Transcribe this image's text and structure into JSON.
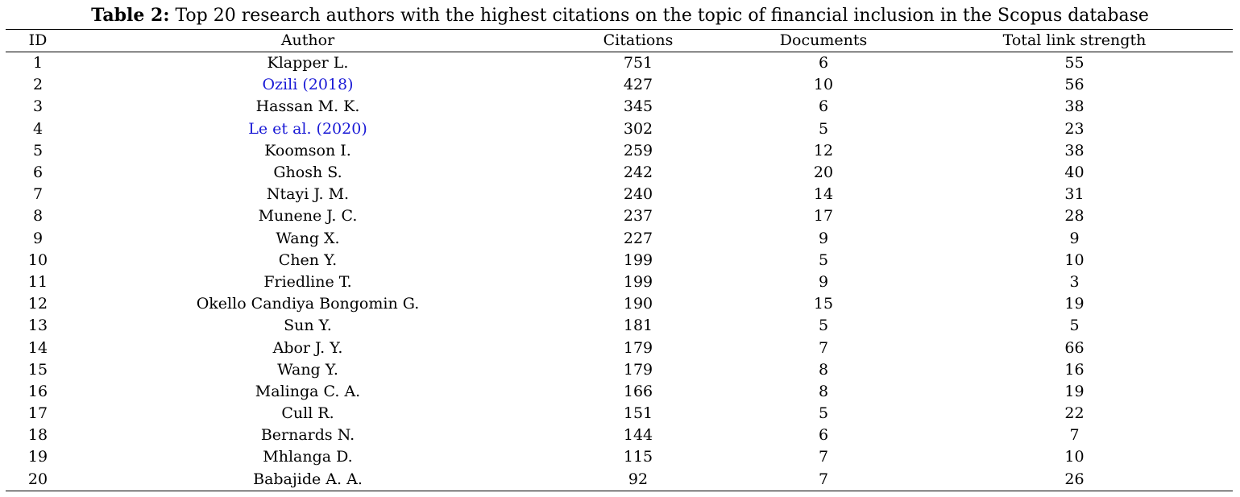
{
  "caption": {
    "label": "Table 2:",
    "text": " Top 20 research authors with the highest citations on the topic of financial inclusion in the Scopus database"
  },
  "headers": [
    "ID",
    "Author",
    "Citations",
    "Documents",
    "Total link strength"
  ],
  "link_color": "#1a1ad6",
  "rows": [
    {
      "id": "1",
      "author": "Klapper L.",
      "citations": "751",
      "documents": "6",
      "tls": "55",
      "link": false
    },
    {
      "id": "2",
      "author": "Ozili (2018)",
      "citations": "427",
      "documents": "10",
      "tls": "56",
      "link": true
    },
    {
      "id": "3",
      "author": "Hassan M. K.",
      "citations": "345",
      "documents": "6",
      "tls": "38",
      "link": false
    },
    {
      "id": "4",
      "author": "Le et al. (2020)",
      "citations": "302",
      "documents": "5",
      "tls": "23",
      "link": true
    },
    {
      "id": "5",
      "author": "Koomson I.",
      "citations": "259",
      "documents": "12",
      "tls": "38",
      "link": false
    },
    {
      "id": "6",
      "author": "Ghosh S.",
      "citations": "242",
      "documents": "20",
      "tls": "40",
      "link": false
    },
    {
      "id": "7",
      "author": "Ntayi J. M.",
      "citations": "240",
      "documents": "14",
      "tls": "31",
      "link": false
    },
    {
      "id": "8",
      "author": "Munene J. C.",
      "citations": "237",
      "documents": "17",
      "tls": "28",
      "link": false
    },
    {
      "id": "9",
      "author": "Wang X.",
      "citations": "227",
      "documents": "9",
      "tls": "9",
      "link": false
    },
    {
      "id": "10",
      "author": "Chen Y.",
      "citations": "199",
      "documents": "5",
      "tls": "10",
      "link": false
    },
    {
      "id": "11",
      "author": "Friedline T.",
      "citations": "199",
      "documents": "9",
      "tls": "3",
      "link": false
    },
    {
      "id": "12",
      "author": "Okello Candiya Bongomin G.",
      "citations": "190",
      "documents": "15",
      "tls": "19",
      "link": false
    },
    {
      "id": "13",
      "author": "Sun Y.",
      "citations": "181",
      "documents": "5",
      "tls": "5",
      "link": false
    },
    {
      "id": "14",
      "author": "Abor J. Y.",
      "citations": "179",
      "documents": "7",
      "tls": "66",
      "link": false
    },
    {
      "id": "15",
      "author": "Wang Y.",
      "citations": "179",
      "documents": "8",
      "tls": "16",
      "link": false
    },
    {
      "id": "16",
      "author": "Malinga C. A.",
      "citations": "166",
      "documents": "8",
      "tls": "19",
      "link": false
    },
    {
      "id": "17",
      "author": "Cull R.",
      "citations": "151",
      "documents": "5",
      "tls": "22",
      "link": false
    },
    {
      "id": "18",
      "author": "Bernards N.",
      "citations": "144",
      "documents": "6",
      "tls": "7",
      "link": false
    },
    {
      "id": "19",
      "author": "Mhlanga D.",
      "citations": "115",
      "documents": "7",
      "tls": "10",
      "link": false
    },
    {
      "id": "20",
      "author": "Babajide A. A.",
      "citations": "92",
      "documents": "7",
      "tls": "26",
      "link": false
    }
  ]
}
